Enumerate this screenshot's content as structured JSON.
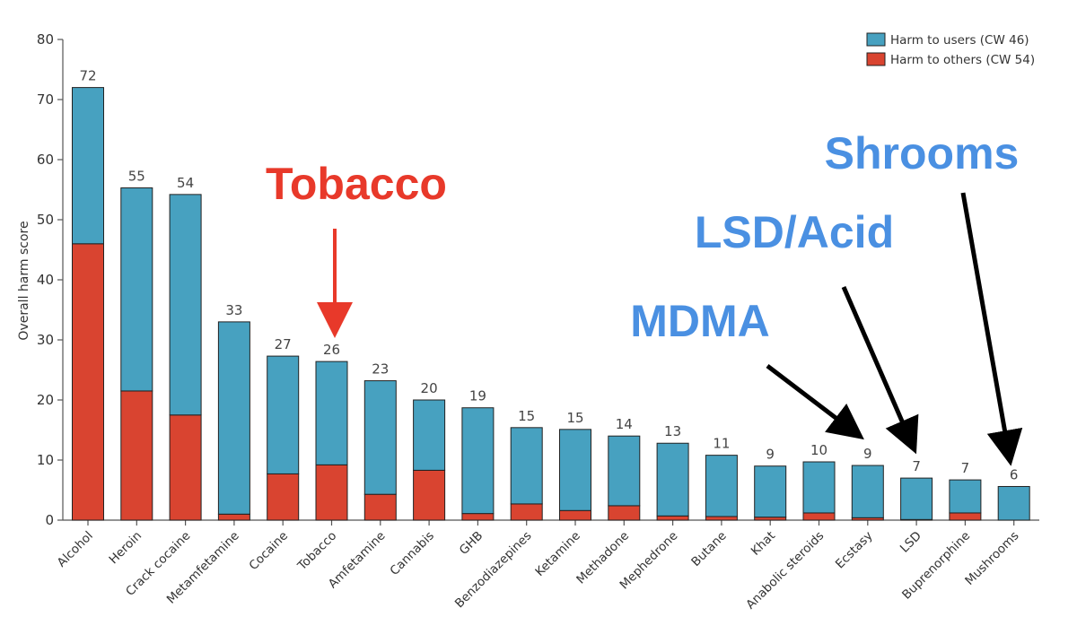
{
  "chart_data": {
    "type": "bar",
    "stacked": true,
    "title": "",
    "xlabel": "",
    "ylabel": "Overall harm score",
    "ylim": [
      0,
      80
    ],
    "yticks": [
      0,
      10,
      20,
      30,
      40,
      50,
      60,
      70,
      80
    ],
    "legend_position": "top-right",
    "categories": [
      "Alcohol",
      "Heroin",
      "Crack cocaine",
      "Metamfetamine",
      "Cocaine",
      "Tobacco",
      "Amfetamine",
      "Cannabis",
      "GHB",
      "Benzodiazepines",
      "Ketamine",
      "Methadone",
      "Mephedrone",
      "Butane",
      "Khat",
      "Anabolic steroids",
      "Ecstasy",
      "LSD",
      "Buprenorphine",
      "Mushrooms"
    ],
    "series": [
      {
        "name": "Harm to others (CW 54)",
        "color": "#d94430",
        "values": [
          46,
          21.5,
          17.5,
          1,
          7.7,
          9.2,
          4.3,
          8.3,
          1.1,
          2.7,
          1.6,
          2.4,
          0.7,
          0.6,
          0.5,
          1.2,
          0.4,
          0.1,
          1.2,
          0
        ]
      },
      {
        "name": "Harm to users (CW 46)",
        "color": "#47a1c0",
        "values": [
          26,
          33.8,
          36.7,
          32,
          19.6,
          17.2,
          18.9,
          11.7,
          17.6,
          12.7,
          13.5,
          11.6,
          12.1,
          10.2,
          8.5,
          8.5,
          8.7,
          6.9,
          5.5,
          5.6
        ]
      }
    ],
    "data_labels": [
      "72",
      "55",
      "54",
      "33",
      "27",
      "26",
      "23",
      "20",
      "19",
      "15",
      "15",
      "14",
      "13",
      "11",
      "9",
      "10",
      "9",
      "7",
      "7",
      "6"
    ],
    "annotations": [
      {
        "text": "Tobacco",
        "color": "#e8392a",
        "target": "Tobacco"
      },
      {
        "text": "MDMA",
        "color": "#4a90e2",
        "target": "Ecstasy"
      },
      {
        "text": "LSD/Acid",
        "color": "#4a90e2",
        "target": "LSD"
      },
      {
        "text": "Shrooms",
        "color": "#4a90e2",
        "target": "Mushrooms"
      }
    ]
  }
}
